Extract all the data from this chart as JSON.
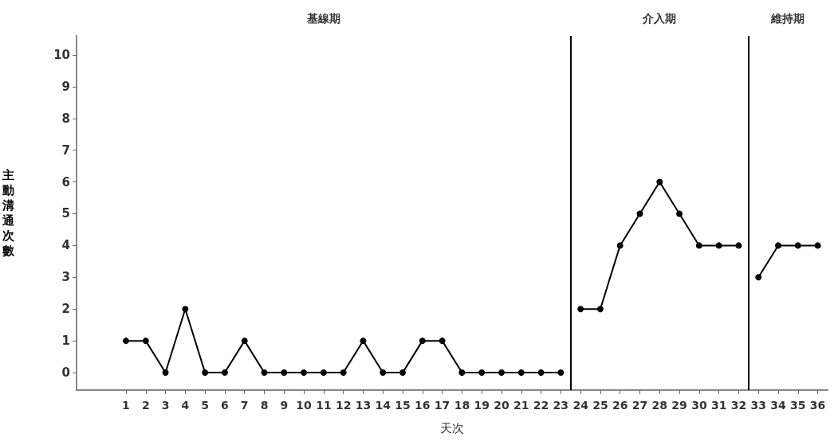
{
  "chart_data": {
    "type": "line",
    "xlabel": "天次",
    "ylabel": "主動溝通次數",
    "xlim": [
      -1.5,
      36.5
    ],
    "xticks": [
      1,
      2,
      3,
      4,
      5,
      6,
      7,
      8,
      9,
      10,
      11,
      12,
      13,
      14,
      15,
      16,
      17,
      18,
      19,
      20,
      21,
      22,
      23,
      24,
      25,
      26,
      27,
      28,
      29,
      30,
      31,
      32,
      33,
      34,
      35,
      36
    ],
    "ylim": [
      -0.55,
      10.6
    ],
    "yticks": [
      0,
      1,
      2,
      3,
      4,
      5,
      6,
      7,
      8,
      9,
      10
    ],
    "series": [
      {
        "color": "#000000",
        "x": [
          1,
          2,
          3,
          4,
          5,
          6,
          7,
          8,
          9,
          10,
          11,
          12,
          13,
          14,
          15,
          16,
          17,
          18,
          19,
          20,
          21,
          22,
          23
        ],
        "values": [
          1,
          1,
          0,
          2,
          0,
          0,
          1,
          0,
          0,
          0,
          0,
          0,
          1,
          0,
          0,
          1,
          1,
          0,
          0,
          0,
          0,
          0,
          0
        ]
      },
      {
        "color": "#000000",
        "x": [
          24,
          25,
          26,
          27,
          28,
          29,
          30,
          31,
          32
        ],
        "values": [
          2,
          2,
          4,
          5,
          6,
          5,
          4,
          4,
          4
        ]
      },
      {
        "color": "#000000",
        "x": [
          33,
          34,
          35,
          36
        ],
        "values": [
          3,
          4,
          4,
          4
        ]
      }
    ],
    "ref_lines": [
      {
        "axis": "x",
        "value": 23.5,
        "color": "#000000"
      },
      {
        "axis": "x",
        "value": 32.5,
        "color": "#000000"
      }
    ],
    "annotations": [
      "基線期",
      "介入期",
      "維持期"
    ],
    "grid": false,
    "marker": "circle",
    "line_style": "solid"
  }
}
